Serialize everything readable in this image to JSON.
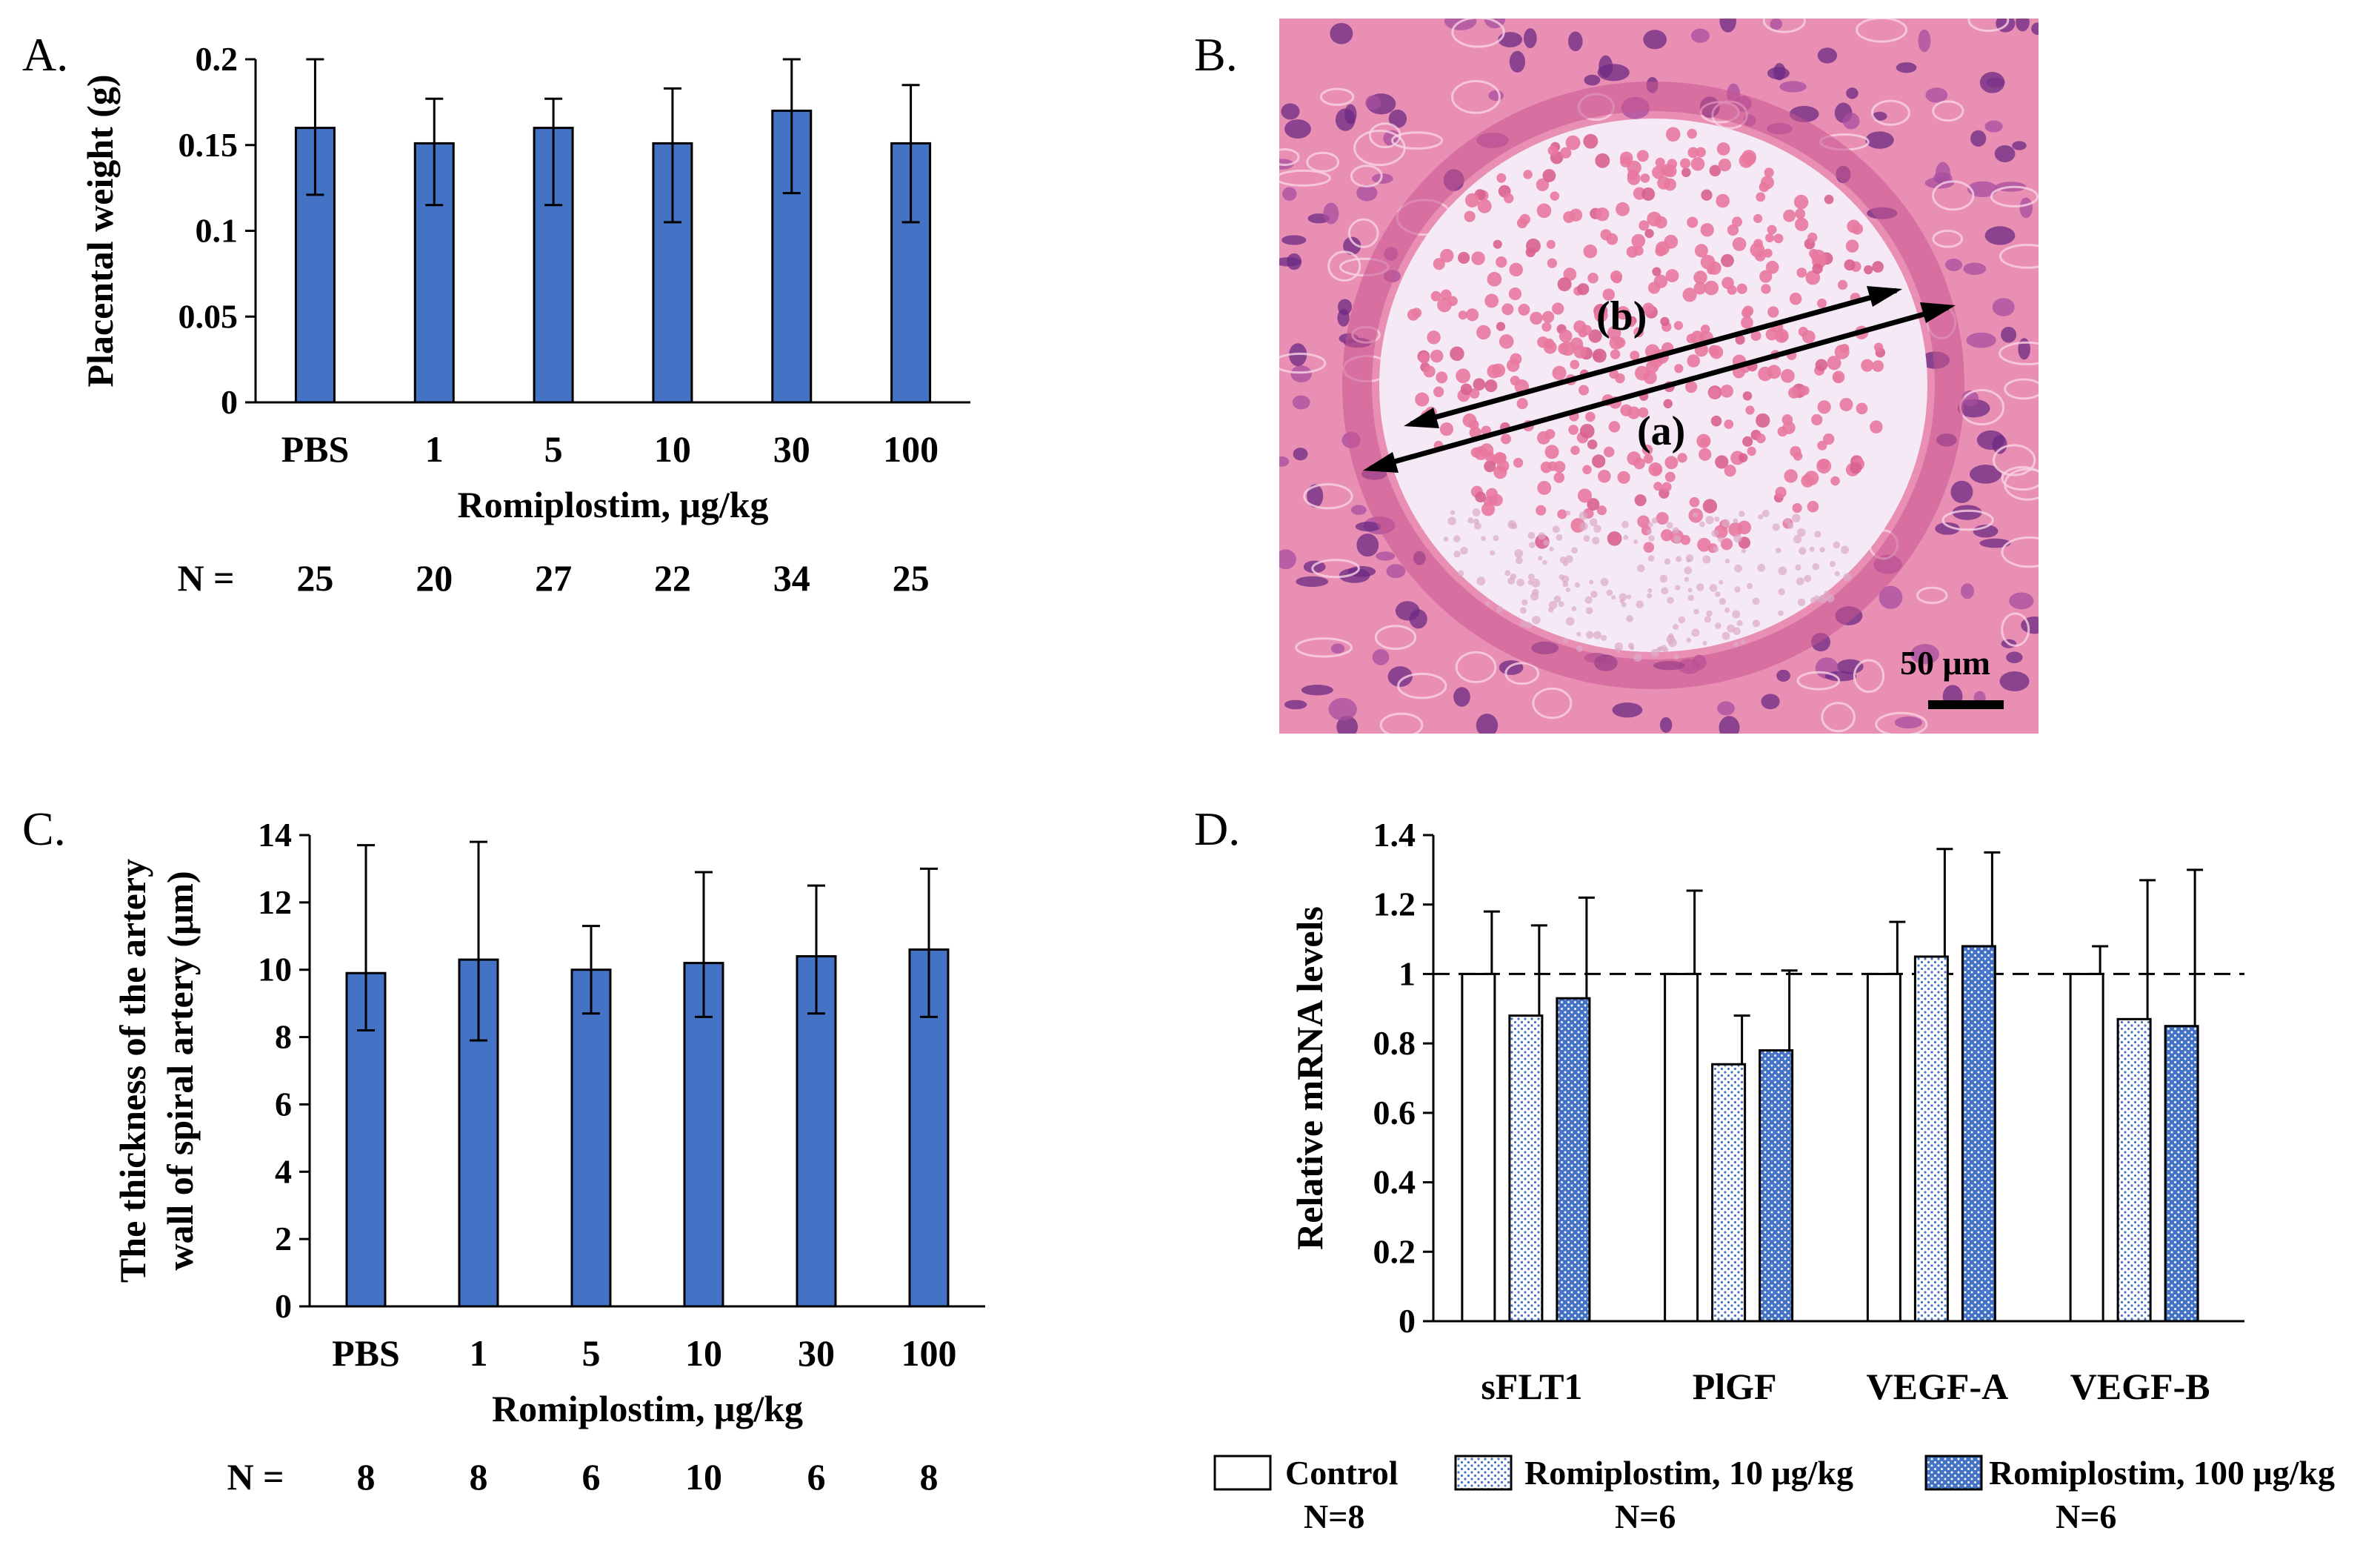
{
  "figure": {
    "panels": {
      "A": {
        "letter": "A.",
        "chart_index": 0
      },
      "B": {
        "letter": "B.",
        "label_a": "(a)",
        "label_b": "(b)",
        "scale_bar": "50 μm"
      },
      "C": {
        "letter": "C.",
        "chart_index": 1
      },
      "D": {
        "letter": "D.",
        "chart_index": 2
      }
    }
  },
  "chart_data": [
    {
      "type": "bar",
      "panel": "A",
      "title": "",
      "ylabel": "Placental weight (g)",
      "xlabel": "Romiplostim, μg/kg",
      "categories": [
        "PBS",
        "1",
        "5",
        "10",
        "30",
        "100"
      ],
      "values": [
        0.16,
        0.151,
        0.16,
        0.151,
        0.17,
        0.151
      ],
      "error_upper": [
        0.2,
        0.177,
        0.177,
        0.183,
        0.2,
        0.185
      ],
      "error_lower": [
        0.121,
        0.115,
        0.115,
        0.105,
        0.122,
        0.105
      ],
      "ylim": [
        0,
        0.2
      ],
      "yticks": [
        0,
        0.05,
        0.1,
        0.15,
        0.2
      ],
      "ytick_labels": [
        "0",
        "0.05",
        "0.1",
        "0.15",
        "0.2"
      ],
      "n_prefix": "N =",
      "n_values": [
        "25",
        "20",
        "27",
        "22",
        "34",
        "25"
      ],
      "bar_color": "#4472C4"
    },
    {
      "type": "bar",
      "panel": "C",
      "title": "",
      "ylabel_line1": "The thickness of the artery",
      "ylabel_line2": "wall of spiral artery (μm)",
      "xlabel": "Romiplostim, μg/kg",
      "categories": [
        "PBS",
        "1",
        "5",
        "10",
        "30",
        "100"
      ],
      "values": [
        9.9,
        10.3,
        10.0,
        10.2,
        10.4,
        10.6
      ],
      "error_upper": [
        13.7,
        13.8,
        11.3,
        12.9,
        12.5,
        13.0
      ],
      "error_lower": [
        8.2,
        7.9,
        8.7,
        8.6,
        8.7,
        8.6
      ],
      "ylim": [
        0,
        14
      ],
      "yticks": [
        0,
        2,
        4,
        6,
        8,
        10,
        12,
        14
      ],
      "ytick_labels": [
        "0",
        "2",
        "4",
        "6",
        "8",
        "10",
        "12",
        "14"
      ],
      "n_prefix": "N =",
      "n_values": [
        "8",
        "8",
        "6",
        "10",
        "6",
        "8"
      ],
      "bar_color": "#4472C4"
    },
    {
      "type": "bar",
      "panel": "D",
      "title": "",
      "ylabel": "Relative mRNA levels",
      "xlabel": "",
      "categories": [
        "sFLT1",
        "PlGF",
        "VEGF-A",
        "VEGF-B"
      ],
      "ylim": [
        0,
        1.4
      ],
      "yticks": [
        0,
        0.2,
        0.4,
        0.6,
        0.8,
        1,
        1.2,
        1.4
      ],
      "ytick_labels": [
        "0",
        "0.2",
        "0.4",
        "0.6",
        "0.8",
        "1",
        "1.2",
        "1.4"
      ],
      "reference_line": 1,
      "series": [
        {
          "name": "Control",
          "n": "N=8",
          "values": [
            1.0,
            1.0,
            1.0,
            1.0
          ],
          "error_upper": [
            1.18,
            1.24,
            1.15,
            1.08
          ],
          "style": "white"
        },
        {
          "name": "Romiplostim, 10 μg/kg",
          "n": "N=6",
          "values": [
            0.88,
            0.74,
            1.05,
            0.87
          ],
          "error_upper": [
            1.14,
            0.88,
            1.36,
            1.27
          ],
          "style": "light-dots"
        },
        {
          "name": "Romiplostim, 100 μg/kg",
          "n": "N=6",
          "values": [
            0.93,
            0.78,
            1.08,
            0.85
          ],
          "error_upper": [
            1.22,
            1.01,
            1.35,
            1.3
          ],
          "style": "blue-dots"
        }
      ]
    }
  ]
}
